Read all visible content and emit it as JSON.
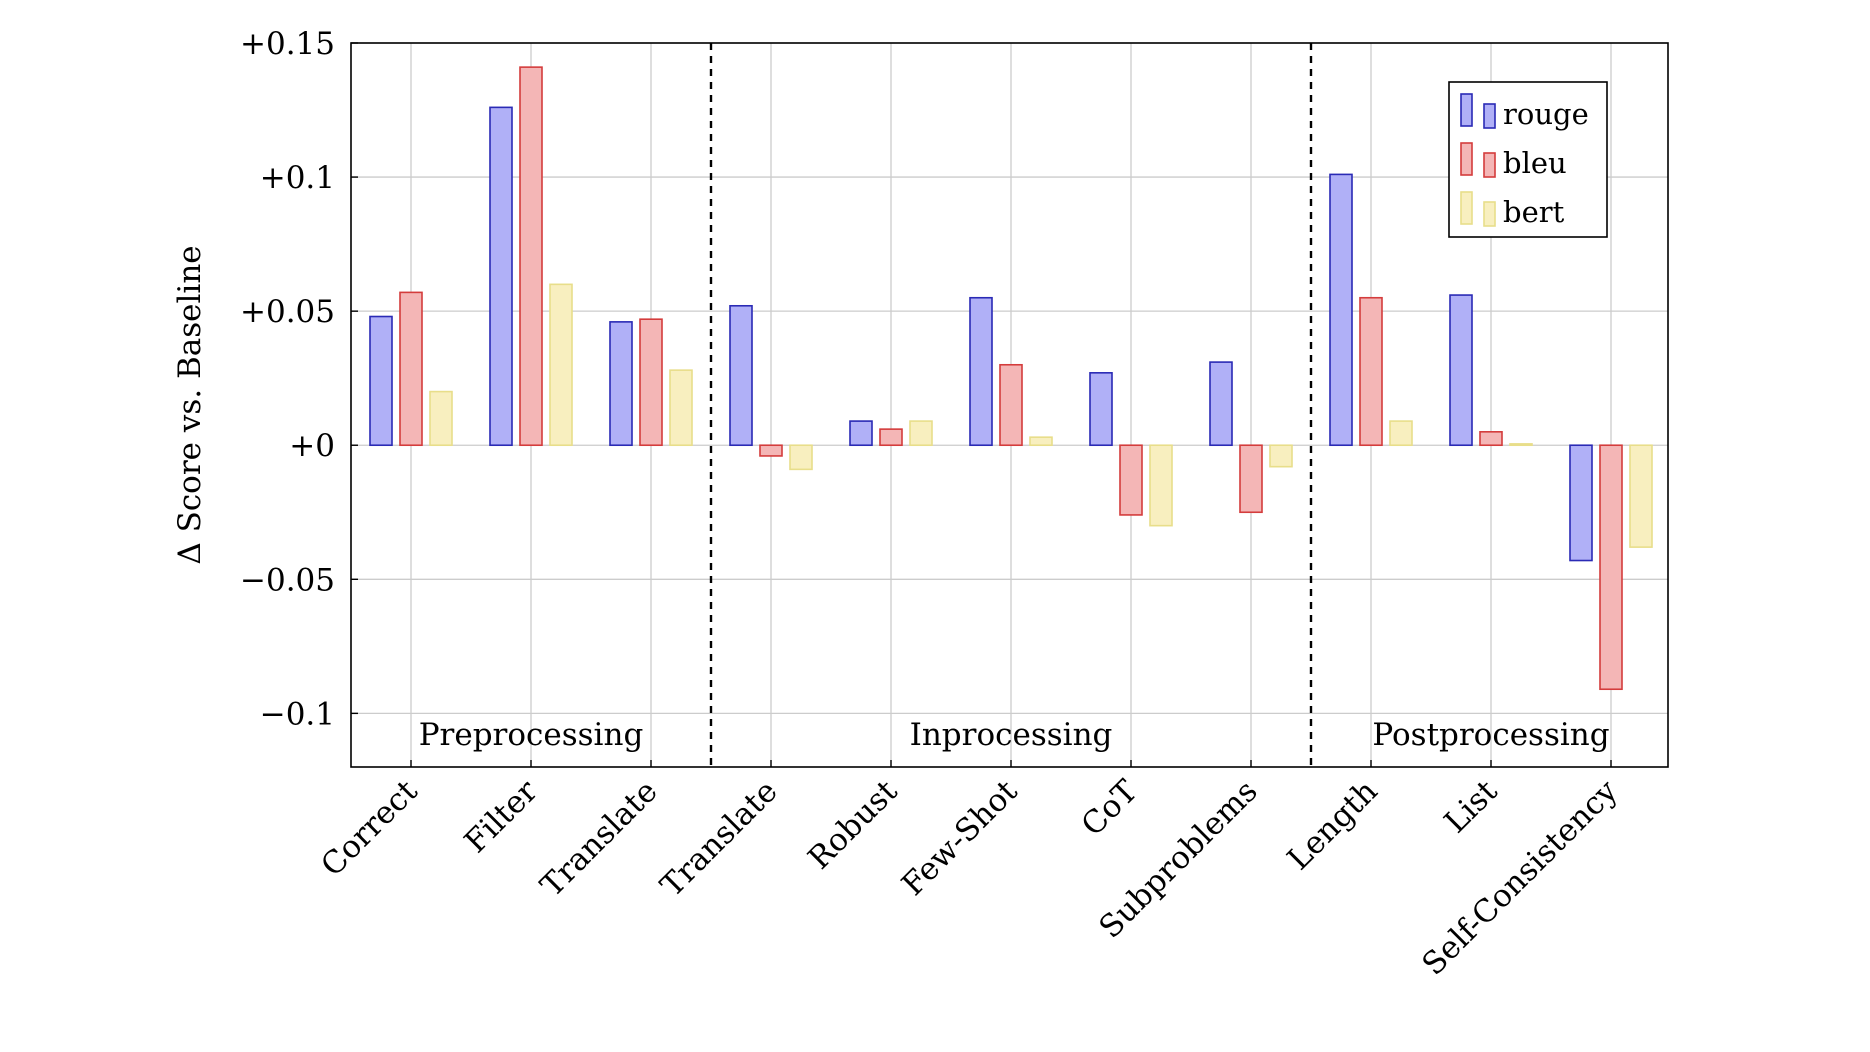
{
  "chart_data": {
    "type": "bar",
    "title": "",
    "xlabel": "",
    "ylabel": "Δ Score vs. Baseline",
    "ylim": [
      -0.12,
      0.15
    ],
    "yticks": [
      0.15,
      0.1,
      0.05,
      0,
      -0.05,
      -0.1
    ],
    "ytick_labels": [
      "+0.15",
      "+0.1",
      "+0.05",
      "+0",
      "−0.05",
      "−0.1"
    ],
    "grid": true,
    "legend_position": "top-right",
    "categories": [
      "Correct",
      "Filter",
      "Translate",
      "Translate",
      "Robust",
      "Few-Shot",
      "CoT",
      "Subproblems",
      "Length",
      "List",
      "Self-Consistency"
    ],
    "groups": [
      {
        "label": "Preprocessing",
        "start": 0,
        "end": 2
      },
      {
        "label": "Inprocessing",
        "start": 3,
        "end": 7
      },
      {
        "label": "Postprocessing",
        "start": 8,
        "end": 10
      }
    ],
    "series": [
      {
        "name": "rouge",
        "fill": "#b0b0f7",
        "stroke": "#2a2ab5",
        "values": [
          0.048,
          0.126,
          0.046,
          0.052,
          0.009,
          0.055,
          0.027,
          0.031,
          0.101,
          0.056,
          -0.043
        ]
      },
      {
        "name": "bleu",
        "fill": "#f4b6b6",
        "stroke": "#d43c3c",
        "values": [
          0.057,
          0.141,
          0.047,
          -0.004,
          0.006,
          0.03,
          -0.026,
          -0.025,
          0.055,
          0.005,
          -0.091
        ]
      },
      {
        "name": "bert",
        "fill": "#f8efbf",
        "stroke": "#e8de8a",
        "values": [
          0.02,
          0.06,
          0.028,
          -0.009,
          0.009,
          0.003,
          -0.03,
          -0.008,
          0.009,
          0.0005,
          -0.038
        ]
      }
    ]
  }
}
